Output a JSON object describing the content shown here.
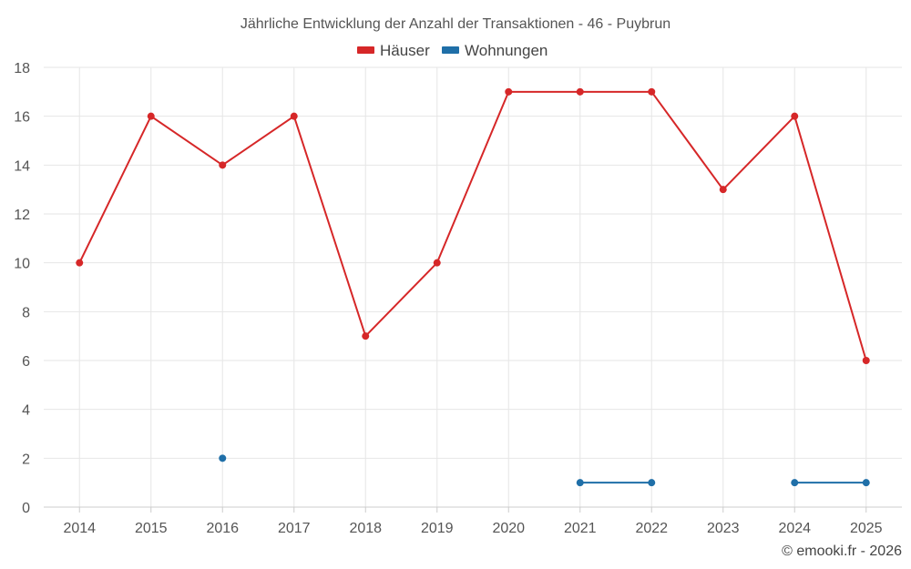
{
  "chart_data": {
    "type": "line",
    "title": "Jährliche Entwicklung der Anzahl der Transaktionen - 46 - Puybrun",
    "categories": [
      "2014",
      "2015",
      "2016",
      "2017",
      "2018",
      "2019",
      "2020",
      "2021",
      "2022",
      "2023",
      "2024",
      "2025"
    ],
    "ylim": [
      0,
      18
    ],
    "yticks": [
      0,
      2,
      4,
      6,
      8,
      10,
      12,
      14,
      16,
      18
    ],
    "grid": true,
    "legend_position": "top-center",
    "series": [
      {
        "name": "Häuser",
        "color": "#d62728",
        "values": [
          10,
          16,
          14,
          16,
          7,
          10,
          17,
          17,
          17,
          13,
          16,
          6
        ]
      },
      {
        "name": "Wohnungen",
        "color": "#1f6fa8",
        "values": [
          null,
          null,
          2,
          null,
          null,
          null,
          null,
          1,
          1,
          null,
          1,
          1
        ]
      }
    ]
  },
  "credit": "© emooki.fr - 2026"
}
